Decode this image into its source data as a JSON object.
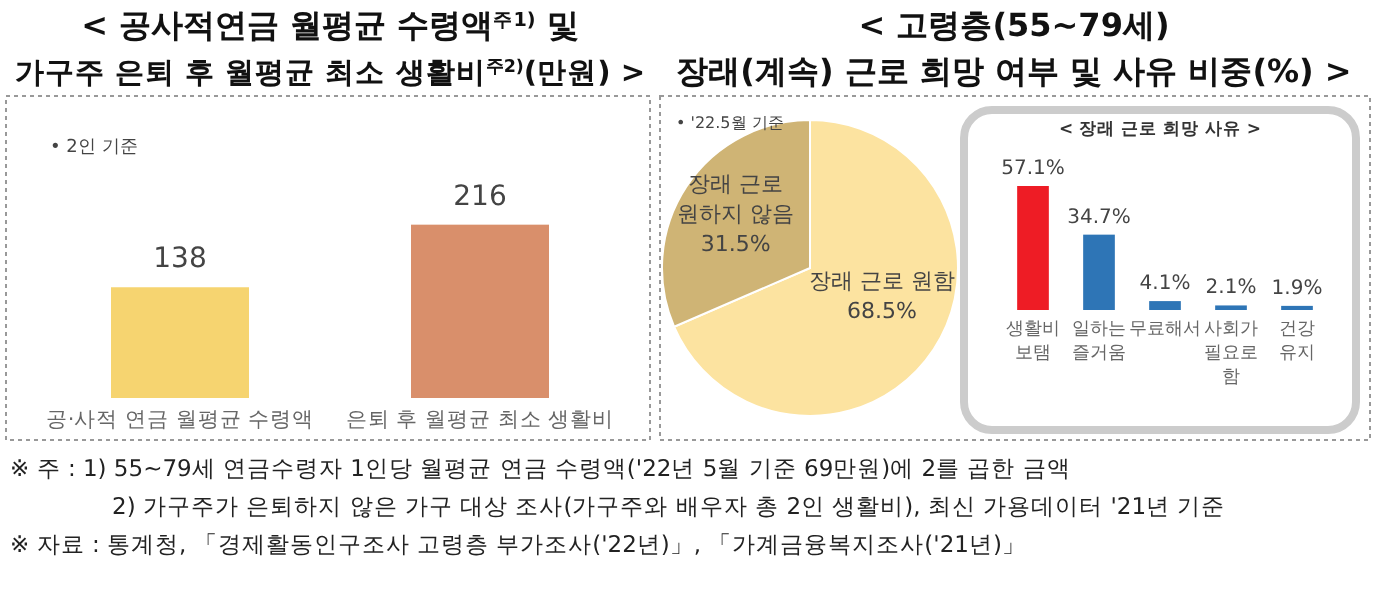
{
  "chart_data": [
    {
      "type": "bar",
      "title": "< 공사적연금 월평균 수령액$^{주1)}$ 및\n가구주 은퇴 후 월평균 최소 생활비$^{주2)}$(만원) >",
      "categories": [
        "공·사적 연금 월평균 수령액",
        "은퇴 후 월평균 최소 생활비"
      ],
      "values": [
        138,
        216
      ],
      "colors": [
        "#f6d470",
        "#d98f6b"
      ],
      "data_labels": true,
      "annotations": [
        "• 2인 기준",
        "※ 주 : 1) 55~79세 연금수령자 1인당 월평균 연금 수령액('22년 5월 기준 69만원)에 2를 곱한 금액",
        "2) 가구주가 은퇴하지 않은 가구 대상 조사(가구주와 배우자 총 2인 생활비), 최신 가용데이터 '21년 기준",
        "※ 자료 : 통계청, 「경제활동인구조사 고령층 부가조사('22년)」, 「가계금융복지조사('21년)」"
      ]
    },
    {
      "type": "pie",
      "title": "< 고령층(55~79세)\n장래(계속) 근로 희망 여부 및 사유 비중(%) >",
      "categories": [
        "장래 근로 원함",
        "장래 근로 원하지 않음"
      ],
      "values": [
        68.5,
        31.5
      ],
      "colors": [
        "#fce3a0",
        "#cfb475"
      ],
      "value_labels": [
        "68.5%",
        "31.5%"
      ],
      "annotations": [
        "• '22.5월 기준"
      ]
    },
    {
      "type": "bar",
      "title": "< 장래 근로 희망 사유 >",
      "categories": [
        "생활비 보탬",
        "일하는 즐거움",
        "무료해서",
        "사회가 필요로 함",
        "건강 유지"
      ],
      "values": [
        57.1,
        34.7,
        4.1,
        2.1,
        1.9
      ],
      "colors": [
        "#ee1c25",
        "#2e75b6",
        "#2e75b6",
        "#2e75b6",
        "#2e75b6"
      ],
      "value_labels": [
        "57.1%",
        "34.7%",
        "4.1%",
        "2.1%",
        "1.9%"
      ]
    }
  ]
}
